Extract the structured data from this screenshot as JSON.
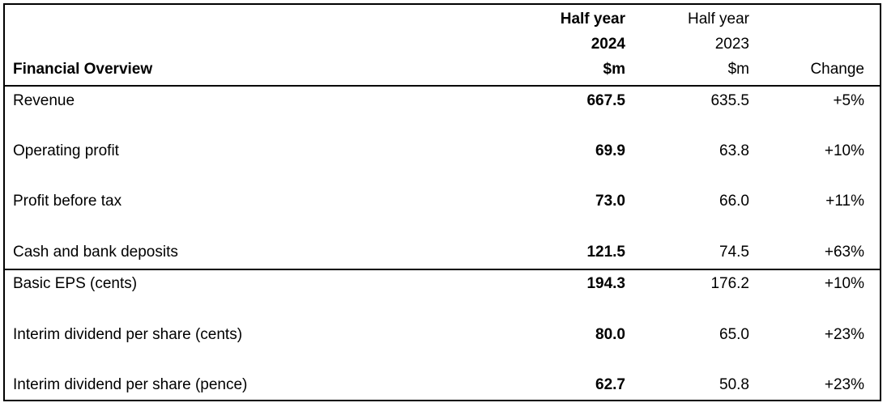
{
  "table": {
    "title": "Financial Overview",
    "columns": [
      {
        "line1": "Half year",
        "line2": "2024",
        "line3": "$m"
      },
      {
        "line1": "Half year",
        "line2": "2023",
        "line3": "$m"
      },
      {
        "line1": "",
        "line2": "",
        "line3": "Change"
      }
    ],
    "rows": [
      {
        "label": "Revenue",
        "v2024": "667.5",
        "v2023": "635.5",
        "change": "+5%"
      },
      {
        "label": "Operating profit",
        "v2024": "69.9",
        "v2023": "63.8",
        "change": "+10%"
      },
      {
        "label": "Profit before tax",
        "v2024": "73.0",
        "v2023": "66.0",
        "change": "+11%"
      },
      {
        "label": "Cash and bank deposits",
        "v2024": "121.5",
        "v2023": "74.5",
        "change": "+63%"
      },
      {
        "label": "Basic EPS (cents)",
        "v2024": "194.3",
        "v2023": "176.2",
        "change": "+10%"
      },
      {
        "label": "Interim dividend per share (cents)",
        "v2024": "80.0",
        "v2023": "65.0",
        "change": "+23%"
      },
      {
        "label": "Interim dividend per share (pence)",
        "v2024": "62.7",
        "v2023": "50.8",
        "change": "+23%"
      }
    ]
  }
}
